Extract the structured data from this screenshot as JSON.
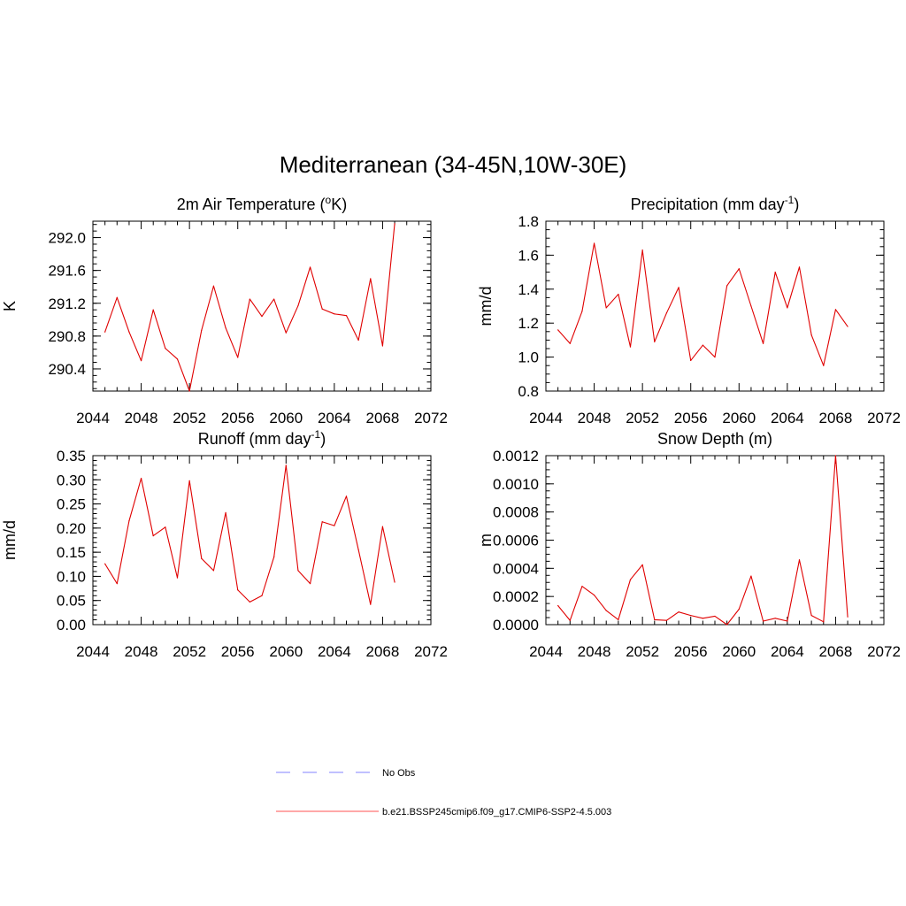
{
  "figure": {
    "title": "Mediterranean (34-45N,10W-30E)"
  },
  "colors": {
    "model_line": "#e00000",
    "obs_line": "#9a9aff"
  },
  "legend": {
    "obs_label": "No Obs",
    "model_label": "b.e21.BSSP245cmip6.f09_g17.CMIP6-SSP2-4.5.003"
  },
  "chart_data": [
    {
      "type": "line",
      "title": "2m Air Temperature (",
      "title_sup": "o",
      "title_tail": "K)",
      "ylabel": "K",
      "xlabel": "",
      "xlim": [
        2044,
        2072
      ],
      "ylim": [
        290.13,
        292.2
      ],
      "xticks": [
        2044,
        2048,
        2052,
        2056,
        2060,
        2064,
        2068,
        2072
      ],
      "xtick_labels": [
        "2044",
        "2048",
        "2052",
        "2056",
        "2060",
        "2064",
        "2068",
        "2072"
      ],
      "yticks": [
        290.4,
        290.8,
        291.2,
        291.6,
        292.0
      ],
      "ytick_labels": [
        "290.4",
        "290.8",
        "291.2",
        "291.6",
        "292.0"
      ],
      "y_minor_step": 0.08,
      "series": [
        {
          "name": "b.e21.BSSP245cmip6.f09_g17.CMIP6-SSP2-4.5.003",
          "x": [
            2045,
            2046,
            2047,
            2048,
            2049,
            2050,
            2051,
            2052,
            2053,
            2054,
            2055,
            2056,
            2057,
            2058,
            2059,
            2060,
            2061,
            2062,
            2063,
            2064,
            2065,
            2066,
            2067,
            2068,
            2069
          ],
          "values": [
            290.85,
            291.27,
            290.85,
            290.5,
            291.12,
            290.65,
            290.52,
            290.13,
            290.87,
            291.41,
            290.9,
            290.54,
            291.25,
            291.04,
            291.25,
            290.84,
            291.17,
            291.64,
            291.13,
            291.07,
            291.05,
            290.75,
            291.5,
            290.68,
            292.17
          ]
        }
      ]
    },
    {
      "type": "line",
      "title": "Precipitation (mm day",
      "title_sup": "-1",
      "title_tail": ")",
      "ylabel": "mm/d",
      "xlabel": "",
      "xlim": [
        2044,
        2072
      ],
      "ylim": [
        0.8,
        1.8
      ],
      "xticks": [
        2044,
        2048,
        2052,
        2056,
        2060,
        2064,
        2068,
        2072
      ],
      "xtick_labels": [
        "2044",
        "2048",
        "2052",
        "2056",
        "2060",
        "2064",
        "2068",
        "2072"
      ],
      "yticks": [
        0.8,
        1.0,
        1.2,
        1.4,
        1.6,
        1.8
      ],
      "ytick_labels": [
        "0.8",
        "1.0",
        "1.2",
        "1.4",
        "1.6",
        "1.8"
      ],
      "y_minor_step": 0.05,
      "series": [
        {
          "name": "b.e21.BSSP245cmip6.f09_g17.CMIP6-SSP2-4.5.003",
          "x": [
            2045,
            2046,
            2047,
            2048,
            2049,
            2050,
            2051,
            2052,
            2053,
            2054,
            2055,
            2056,
            2057,
            2058,
            2059,
            2060,
            2061,
            2062,
            2063,
            2064,
            2065,
            2066,
            2067,
            2068,
            2069
          ],
          "values": [
            1.16,
            1.08,
            1.27,
            1.67,
            1.29,
            1.37,
            1.06,
            1.63,
            1.09,
            1.26,
            1.41,
            0.98,
            1.07,
            1.0,
            1.42,
            1.52,
            1.3,
            1.08,
            1.5,
            1.29,
            1.53,
            1.13,
            0.95,
            1.28,
            1.18
          ]
        }
      ]
    },
    {
      "type": "line",
      "title": "Runoff (mm day",
      "title_sup": "-1",
      "title_tail": ")",
      "ylabel": "mm/d",
      "xlabel": "",
      "xlim": [
        2044,
        2072
      ],
      "ylim": [
        0.0,
        0.35
      ],
      "xticks": [
        2044,
        2048,
        2052,
        2056,
        2060,
        2064,
        2068,
        2072
      ],
      "xtick_labels": [
        "2044",
        "2048",
        "2052",
        "2056",
        "2060",
        "2064",
        "2068",
        "2072"
      ],
      "yticks": [
        0.0,
        0.05,
        0.1,
        0.15,
        0.2,
        0.25,
        0.3,
        0.35
      ],
      "ytick_labels": [
        "0.00",
        "0.05",
        "0.10",
        "0.15",
        "0.20",
        "0.25",
        "0.30",
        "0.35"
      ],
      "y_minor_step": 0.01,
      "series": [
        {
          "name": "b.e21.BSSP245cmip6.f09_g17.CMIP6-SSP2-4.5.003",
          "x": [
            2045,
            2046,
            2047,
            2048,
            2049,
            2050,
            2051,
            2052,
            2053,
            2054,
            2055,
            2056,
            2057,
            2058,
            2059,
            2060,
            2061,
            2062,
            2063,
            2064,
            2065,
            2066,
            2067,
            2068,
            2069
          ],
          "values": [
            0.126,
            0.085,
            0.215,
            0.303,
            0.184,
            0.202,
            0.097,
            0.298,
            0.137,
            0.112,
            0.232,
            0.072,
            0.047,
            0.06,
            0.14,
            0.33,
            0.112,
            0.085,
            0.213,
            0.205,
            0.266,
            0.155,
            0.042,
            0.203,
            0.088
          ]
        }
      ]
    },
    {
      "type": "line",
      "title": "Snow Depth (m)",
      "title_sup": "",
      "title_tail": "",
      "ylabel": "m",
      "xlabel": "",
      "xlim": [
        2044,
        2072
      ],
      "ylim": [
        0.0,
        0.0012
      ],
      "xticks": [
        2044,
        2048,
        2052,
        2056,
        2060,
        2064,
        2068,
        2072
      ],
      "xtick_labels": [
        "2044",
        "2048",
        "2052",
        "2056",
        "2060",
        "2064",
        "2068",
        "2072"
      ],
      "yticks": [
        0.0,
        0.0002,
        0.0004,
        0.0006,
        0.0008,
        0.001,
        0.0012
      ],
      "ytick_labels": [
        "0.0000",
        "0.0002",
        "0.0004",
        "0.0006",
        "0.0008",
        "0.0010",
        "0.0012"
      ],
      "y_minor_step": 5e-05,
      "series": [
        {
          "name": "b.e21.BSSP245cmip6.f09_g17.CMIP6-SSP2-4.5.003",
          "x": [
            2045,
            2046,
            2047,
            2048,
            2049,
            2050,
            2051,
            2052,
            2053,
            2054,
            2055,
            2056,
            2057,
            2058,
            2059,
            2060,
            2061,
            2062,
            2063,
            2064,
            2065,
            2066,
            2067,
            2068,
            2069
          ],
          "values": [
            0.000135,
            3e-05,
            0.000272,
            0.00021,
            0.0001,
            3.5e-05,
            0.00032,
            0.000425,
            3.5e-05,
            3e-05,
            9e-05,
            6.5e-05,
            4.5e-05,
            6e-05,
            0.0,
            0.00011,
            0.000345,
            2.5e-05,
            4.5e-05,
            2.5e-05,
            0.00046,
            6.5e-05,
            2e-05,
            0.0012,
            5.5e-05
          ]
        }
      ]
    }
  ]
}
